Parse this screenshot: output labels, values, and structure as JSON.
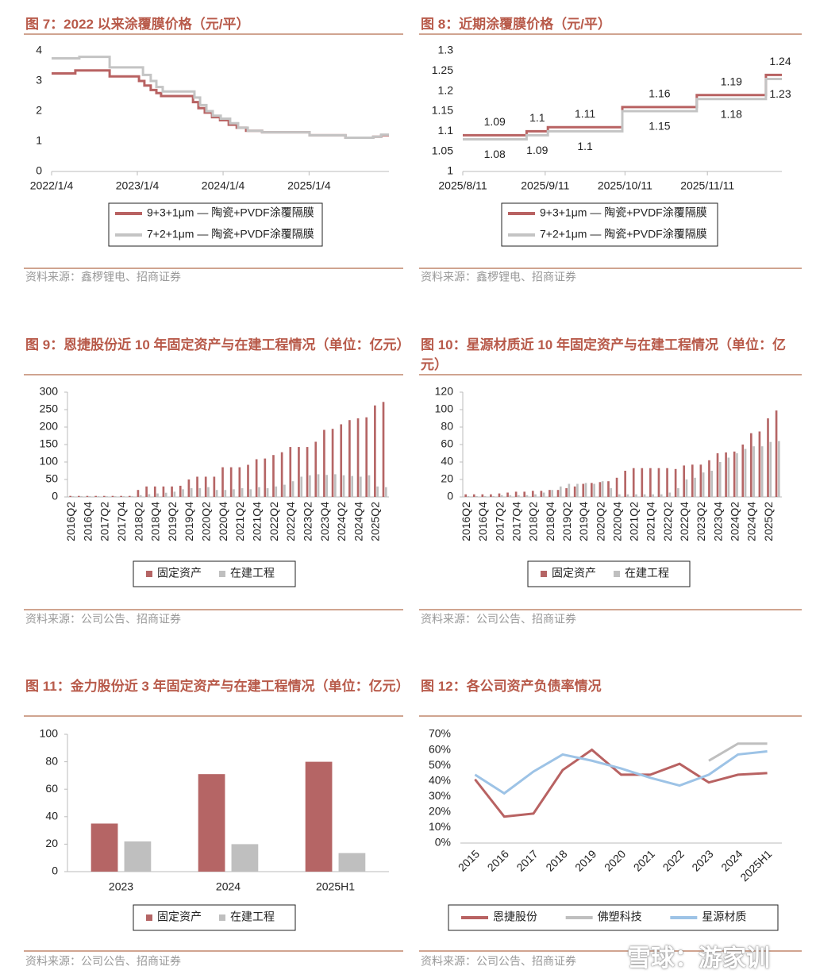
{
  "chart_data": [
    {
      "type": "step",
      "title": "图 7：2022 以来涂覆膜价格（元/平）",
      "source": "资料来源：鑫椤锂电、招商证券",
      "xlim": [
        0,
        1436
      ],
      "xticks": [
        {
          "value": 0,
          "label": "2022/1/4"
        },
        {
          "value": 365,
          "label": "2023/1/4"
        },
        {
          "value": 730,
          "label": "2024/1/4"
        },
        {
          "value": 1096,
          "label": "2025/1/4"
        }
      ],
      "ylim": [
        0,
        4
      ],
      "yticks": [
        0,
        1,
        2,
        3,
        4
      ],
      "series": [
        {
          "name": "9+3+1μm — 陶瓷+PVDF涂覆隔膜",
          "color": "#b86262",
          "x": [
            0,
            101,
            247,
            372,
            395,
            422,
            446,
            466,
            602,
            625,
            652,
            683,
            717,
            754,
            788,
            828,
            896,
            1098,
            1251,
            1369,
            1403
          ],
          "values": [
            3.25,
            3.35,
            3.15,
            3.0,
            2.85,
            2.7,
            2.6,
            2.5,
            2.3,
            2.1,
            1.95,
            1.8,
            1.7,
            1.55,
            1.45,
            1.35,
            1.3,
            1.2,
            1.12,
            1.15,
            1.2
          ]
        },
        {
          "name": "7+2+1μm — 陶瓷+PVDF涂覆隔膜",
          "color": "#c4c4c4",
          "x": [
            0,
            118,
            247,
            389,
            422,
            446,
            473,
            608,
            632,
            659,
            686,
            720,
            760,
            794,
            835,
            896,
            1098,
            1251,
            1369,
            1403
          ],
          "values": [
            3.75,
            3.8,
            3.45,
            3.2,
            3.0,
            2.8,
            2.65,
            2.45,
            2.2,
            2.0,
            1.85,
            1.75,
            1.6,
            1.45,
            1.35,
            1.3,
            1.2,
            1.12,
            1.15,
            1.22
          ]
        }
      ]
    },
    {
      "type": "step",
      "title": "图 8：近期涂覆膜价格（元/平）",
      "source": "资料来源：鑫椤锂电、招商证券",
      "data_labels": true,
      "xlim": [
        0,
        120
      ],
      "xticks": [
        {
          "value": 0,
          "label": "2025/8/11"
        },
        {
          "value": 31,
          "label": "2025/9/11"
        },
        {
          "value": 61,
          "label": "2025/10/11"
        },
        {
          "value": 92,
          "label": "2025/11/11"
        }
      ],
      "ylim": [
        1,
        1.3
      ],
      "yticks": [
        1,
        1.05,
        1.1,
        1.15,
        1.2,
        1.25,
        1.3
      ],
      "series": [
        {
          "name": "9+3+1μm — 陶瓷+PVDF涂覆隔膜",
          "color": "#b86262",
          "x": [
            0,
            24,
            32,
            60,
            88,
            114
          ],
          "values": [
            1.09,
            1.1,
            1.11,
            1.16,
            1.19,
            1.24
          ]
        },
        {
          "name": "7+2+1μm — 陶瓷+PVDF涂覆隔膜",
          "color": "#c4c4c4",
          "x": [
            0,
            24,
            32,
            60,
            88,
            114
          ],
          "values": [
            1.08,
            1.09,
            1.1,
            1.15,
            1.18,
            1.23
          ]
        }
      ]
    },
    {
      "type": "bar",
      "title": "图 9：恩捷股份近 10 年固定资产与在建工程情况（单位：亿元）",
      "source": "资料来源：公司公告、招商证券",
      "categories": [
        "2016Q2",
        null,
        "2016Q4",
        null,
        "2017Q2",
        null,
        "2017Q4",
        null,
        "2018Q2",
        null,
        "2018Q4",
        null,
        "2019Q2",
        null,
        "2019Q4",
        null,
        "2020Q2",
        null,
        "2020Q4",
        null,
        "2021Q2",
        null,
        "2021Q4",
        null,
        "2022Q2",
        null,
        "2022Q4",
        null,
        "2023Q2",
        null,
        "2023Q4",
        null,
        "2024Q2",
        null,
        "2024Q4",
        null,
        "2025Q2",
        null
      ],
      "ylim": [
        0,
        300
      ],
      "yticks": [
        0,
        50,
        100,
        150,
        200,
        250,
        300
      ],
      "series": [
        {
          "name": "固定资产",
          "color": "#b56565",
          "values": [
            3,
            3,
            3,
            3,
            3,
            3,
            3,
            3,
            20,
            30,
            30,
            30,
            30,
            32,
            50,
            58,
            58,
            58,
            85,
            85,
            85,
            92,
            108,
            110,
            120,
            128,
            143,
            143,
            143,
            158,
            192,
            195,
            208,
            220,
            225,
            228,
            262,
            272
          ]
        },
        {
          "name": "在建工程",
          "color": "#bfbfbf",
          "values": [
            2,
            2,
            2,
            2,
            2,
            2,
            2,
            2,
            5,
            8,
            10,
            12,
            15,
            22,
            25,
            25,
            28,
            20,
            20,
            22,
            25,
            22,
            28,
            25,
            30,
            35,
            45,
            58,
            62,
            65,
            63,
            65,
            62,
            60,
            58,
            62,
            30,
            28
          ]
        }
      ]
    },
    {
      "type": "bar",
      "title": "图 10：星源材质近 10 年固定资产与在建工程情况（单位：亿元）",
      "source": "资料来源：公司公告、招商证券",
      "categories": [
        "2016Q2",
        null,
        "2016Q4",
        null,
        "2017Q2",
        null,
        "2017Q4",
        null,
        "2018Q2",
        null,
        "2018Q4",
        null,
        "2019Q2",
        null,
        "2019Q4",
        null,
        "2020Q2",
        null,
        "2020Q4",
        null,
        "2021Q2",
        null,
        "2021Q4",
        null,
        "2022Q2",
        null,
        "2022Q4",
        null,
        "2023Q2",
        null,
        "2023Q4",
        null,
        "2024Q2",
        null,
        "2024Q4",
        null,
        "2025Q2",
        null
      ],
      "ylim": [
        0,
        120
      ],
      "yticks": [
        0,
        20,
        40,
        60,
        80,
        100,
        120
      ],
      "series": [
        {
          "name": "固定资产",
          "color": "#b56565",
          "values": [
            3,
            3,
            3,
            3,
            4,
            5,
            6,
            6,
            7,
            7,
            8,
            8,
            10,
            12,
            15,
            16,
            17,
            18,
            22,
            30,
            33,
            33,
            33,
            33,
            33,
            32,
            36,
            37,
            37,
            42,
            50,
            51,
            52,
            60,
            73,
            75,
            90,
            99
          ]
        },
        {
          "name": "在建工程",
          "color": "#bfbfbf",
          "values": [
            1,
            1,
            1,
            1,
            2,
            2,
            2,
            2,
            3,
            5,
            8,
            12,
            15,
            15,
            16,
            15,
            18,
            10,
            3,
            3,
            3,
            3,
            3,
            3,
            5,
            10,
            20,
            22,
            28,
            30,
            40,
            45,
            50,
            55,
            58,
            58,
            63,
            64
          ]
        }
      ]
    },
    {
      "type": "bar",
      "title": "图 11：金力股份近 3 年固定资产与在建工程情况（单位：亿元）",
      "source": "资料来源：公司公告、招商证券",
      "categories": [
        "2023",
        "2024",
        "2025H1"
      ],
      "ylim": [
        0,
        100
      ],
      "yticks": [
        0,
        20,
        40,
        60,
        80,
        100
      ],
      "series": [
        {
          "name": "固定资产",
          "color": "#b56565",
          "values": [
            35,
            71,
            80
          ]
        },
        {
          "name": "在建工程",
          "color": "#bfbfbf",
          "values": [
            22,
            20,
            13.5
          ]
        }
      ]
    },
    {
      "type": "line",
      "title": "图 12：各公司资产负债率情况",
      "source": "资料来源：公司公告、招商证券",
      "categories": [
        "2015",
        "2016",
        "2017",
        "2018",
        "2019",
        "2020",
        "2021",
        "2022",
        "2023",
        "2024",
        "2025H1"
      ],
      "ylim": [
        0,
        70
      ],
      "yticks": [
        {
          "value": 0,
          "label": "0%"
        },
        {
          "value": 10,
          "label": "10%"
        },
        {
          "value": 20,
          "label": "20%"
        },
        {
          "value": 30,
          "label": "30%"
        },
        {
          "value": 40,
          "label": "40%"
        },
        {
          "value": 50,
          "label": "50%"
        },
        {
          "value": 60,
          "label": "60%"
        },
        {
          "value": 70,
          "label": "70%"
        }
      ],
      "series": [
        {
          "name": "恩捷股份",
          "color": "#b86262",
          "values": [
            41,
            17,
            19,
            47,
            60,
            44,
            44,
            51,
            39,
            44,
            45
          ]
        },
        {
          "name": "佛塑科技",
          "color": "#bfbfbf",
          "values": [
            null,
            null,
            null,
            null,
            null,
            null,
            null,
            null,
            53,
            64,
            64
          ]
        },
        {
          "name": "星源材质",
          "color": "#9dc3e6",
          "values": [
            44,
            32,
            46,
            57,
            53,
            48,
            42,
            37,
            44,
            57,
            59
          ]
        }
      ]
    }
  ],
  "watermark": "雪球：游家训"
}
